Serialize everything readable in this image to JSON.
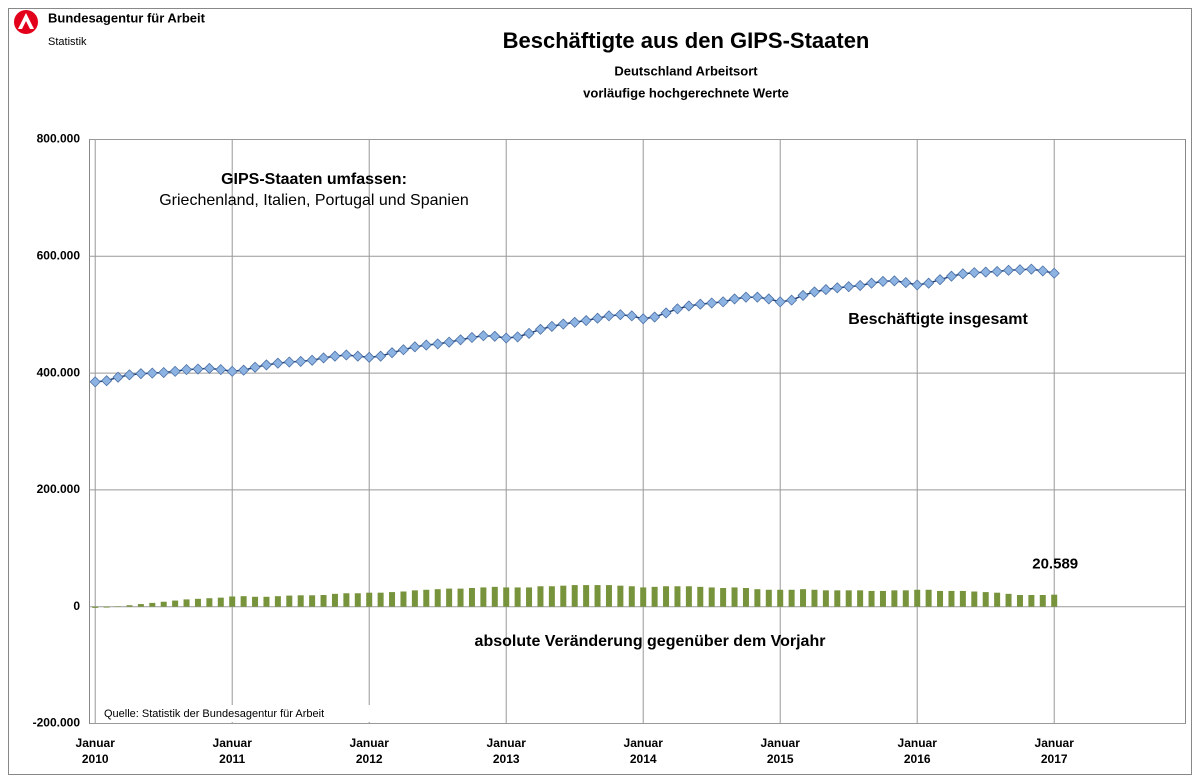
{
  "logo": {
    "name": "Bundesagentur für Arbeit",
    "unit": "Statistik"
  },
  "chart_data": {
    "type": "line_bar",
    "title": "Beschäftigte aus den GIPS-Staaten",
    "subtitle": [
      "Deutschland  Arbeitsort",
      "vorläufige hochgerechnete Werte"
    ],
    "annotations": [
      "GIPS-Staaten umfassen:",
      "Griechenland, Italien, Portugal und Spanien"
    ],
    "source": "Quelle: Statistik der Bundesagentur für Arbeit",
    "categories": [
      "Januar\n2010",
      null,
      null,
      null,
      null,
      null,
      null,
      null,
      null,
      null,
      null,
      null,
      "Januar\n2011",
      null,
      null,
      null,
      null,
      null,
      null,
      null,
      null,
      null,
      null,
      null,
      "Januar\n2012",
      null,
      null,
      null,
      null,
      null,
      null,
      null,
      null,
      null,
      null,
      null,
      "Januar\n2013",
      null,
      null,
      null,
      null,
      null,
      null,
      null,
      null,
      null,
      null,
      null,
      "Januar\n2014",
      null,
      null,
      null,
      null,
      null,
      null,
      null,
      null,
      null,
      null,
      null,
      "Januar\n2015",
      null,
      null,
      null,
      null,
      null,
      null,
      null,
      null,
      null,
      null,
      null,
      "Januar\n2016",
      null,
      null,
      null,
      null,
      null,
      null,
      null,
      null,
      null,
      null,
      null,
      "Januar\n2017",
      null,
      null,
      null,
      null,
      null,
      null,
      null,
      null,
      null,
      null,
      null
    ],
    "series": [
      {
        "name": "Beschäftigte insgesamt",
        "kind": "line",
        "color": "#1f3f73",
        "marker_color": "#8db3e2",
        "values": [
          385000,
          387000,
          393000,
          397000,
          399000,
          400000,
          401000,
          403000,
          406000,
          407000,
          408000,
          406000,
          403000,
          405000,
          410000,
          414000,
          417000,
          419000,
          420000,
          422000,
          426000,
          429000,
          431000,
          429000,
          427000,
          429000,
          435000,
          440000,
          445000,
          448000,
          450000,
          453000,
          457000,
          461000,
          464000,
          463000,
          460000,
          462000,
          468000,
          475000,
          480000,
          484000,
          487000,
          490000,
          494000,
          498000,
          500000,
          498000,
          493000,
          496000,
          503000,
          510000,
          515000,
          518000,
          520000,
          522000,
          527000,
          530000,
          530000,
          527000,
          522000,
          525000,
          533000,
          539000,
          543000,
          546000,
          548000,
          550000,
          554000,
          557000,
          558000,
          555000,
          551000,
          554000,
          560000,
          566000,
          570000,
          572000,
          573000,
          574000,
          576000,
          577000,
          578000,
          575000,
          571000,
          null,
          null,
          null,
          null,
          null,
          null,
          null,
          null,
          null,
          null,
          null
        ]
      },
      {
        "name": "absolute Veränderung gegenüber dem Vorjahr",
        "kind": "bar",
        "color": "#77933c",
        "values": [
          -2000,
          -1500,
          500,
          2500,
          4500,
          6500,
          8500,
          10500,
          12500,
          13500,
          14500,
          15500,
          17500,
          18000,
          17000,
          17000,
          18000,
          19000,
          19500,
          19500,
          20000,
          22000,
          23000,
          23000,
          24000,
          24000,
          25000,
          26000,
          28000,
          29000,
          30000,
          31000,
          31000,
          32000,
          33000,
          34000,
          33000,
          33000,
          33000,
          35000,
          35000,
          36000,
          37000,
          37000,
          37000,
          37000,
          36000,
          35000,
          33000,
          34000,
          35000,
          35000,
          35000,
          34000,
          33000,
          32000,
          33000,
          32000,
          30000,
          29000,
          29000,
          29000,
          30000,
          29000,
          28000,
          28000,
          28000,
          28000,
          27000,
          27000,
          28000,
          28000,
          29000,
          29000,
          27000,
          27000,
          27000,
          26000,
          25000,
          24000,
          22000,
          20000,
          20000,
          20000,
          20589,
          null,
          null,
          null,
          null,
          null,
          null,
          null,
          null,
          null,
          null,
          null
        ],
        "value_labels": [
          null,
          null,
          null,
          null,
          null,
          null,
          null,
          null,
          null,
          null,
          null,
          null,
          null,
          null,
          null,
          null,
          null,
          null,
          null,
          null,
          null,
          null,
          null,
          null,
          null,
          null,
          null,
          null,
          null,
          null,
          null,
          null,
          null,
          null,
          null,
          null,
          null,
          null,
          null,
          null,
          null,
          null,
          null,
          null,
          null,
          null,
          null,
          null,
          null,
          null,
          null,
          null,
          null,
          null,
          null,
          null,
          null,
          null,
          null,
          null,
          null,
          null,
          null,
          null,
          null,
          null,
          null,
          null,
          null,
          null,
          null,
          null,
          null,
          null,
          null,
          null,
          null,
          null,
          null,
          null,
          null,
          null,
          null,
          null,
          "20.589",
          null,
          null,
          null,
          null,
          null,
          null,
          null,
          null,
          null,
          null,
          null
        ]
      }
    ],
    "ylim": [
      -200000,
      800000
    ],
    "yticks": [
      {
        "value": -200000,
        "label": "-200.000"
      },
      0,
      {
        "value": 200000,
        "label": "200.000"
      },
      {
        "value": 400000,
        "label": "400.000"
      },
      {
        "value": 600000,
        "label": "600.000"
      },
      {
        "value": 800000,
        "label": "800.000"
      }
    ],
    "grid": true
  }
}
